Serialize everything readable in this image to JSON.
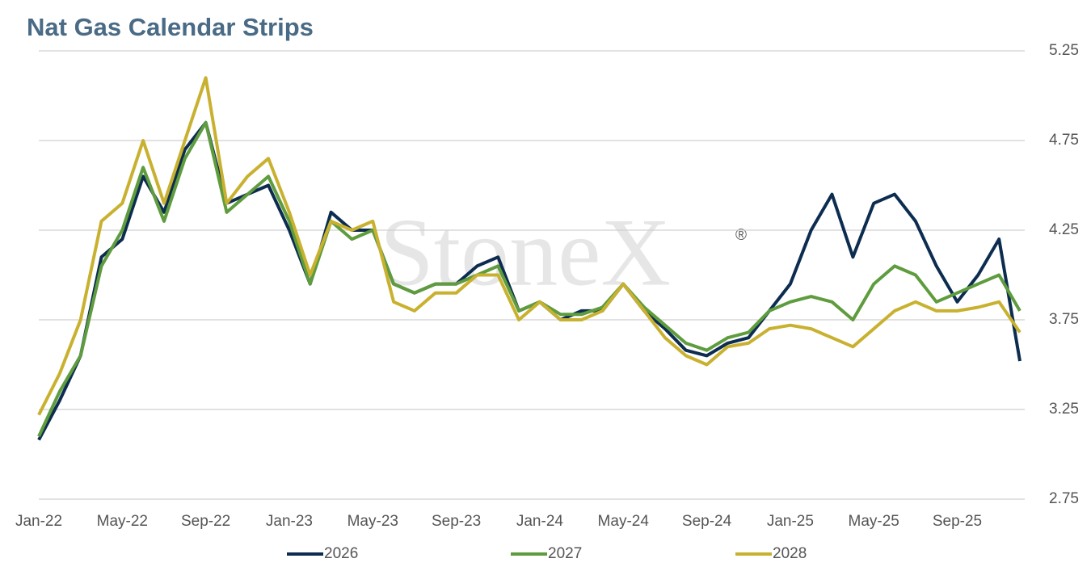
{
  "chart_data": {
    "type": "line",
    "title": "Nat Gas Calendar Strips",
    "watermark": "StoneX",
    "x": [
      "2022-01",
      "2022-02",
      "2022-03",
      "2022-04",
      "2022-05",
      "2022-06",
      "2022-07",
      "2022-08",
      "2022-09",
      "2022-10",
      "2022-11",
      "2022-12",
      "2023-01",
      "2023-02",
      "2023-03",
      "2023-04",
      "2023-05",
      "2023-06",
      "2023-07",
      "2023-08",
      "2023-09",
      "2023-10",
      "2023-11",
      "2023-12",
      "2024-01",
      "2024-02",
      "2024-03",
      "2024-04",
      "2024-05",
      "2024-06",
      "2024-07",
      "2024-08",
      "2024-09",
      "2024-10",
      "2024-11",
      "2024-12",
      "2025-01",
      "2025-02",
      "2025-03",
      "2025-04",
      "2025-05",
      "2025-06",
      "2025-07",
      "2025-08",
      "2025-09",
      "2025-10",
      "2025-11",
      "2025-12"
    ],
    "series": [
      {
        "name": "2026",
        "color": "#0d2d50",
        "values": [
          3.08,
          3.3,
          3.55,
          4.1,
          4.2,
          4.55,
          4.35,
          4.7,
          4.85,
          4.4,
          4.45,
          4.5,
          4.25,
          3.95,
          4.35,
          4.25,
          4.25,
          3.95,
          3.9,
          3.95,
          3.95,
          4.05,
          4.1,
          3.8,
          3.85,
          3.75,
          3.8,
          3.8,
          3.95,
          3.8,
          3.7,
          3.58,
          3.55,
          3.62,
          3.65,
          3.8,
          3.95,
          4.25,
          4.45,
          4.1,
          4.4,
          4.45,
          4.3,
          4.05,
          3.85,
          4.0,
          4.2,
          3.52
        ]
      },
      {
        "name": "2027",
        "color": "#5e9c3e",
        "values": [
          3.1,
          3.35,
          3.55,
          4.05,
          4.25,
          4.6,
          4.3,
          4.65,
          4.85,
          4.35,
          4.45,
          4.55,
          4.3,
          3.95,
          4.3,
          4.2,
          4.25,
          3.95,
          3.9,
          3.95,
          3.95,
          4.0,
          4.05,
          3.8,
          3.85,
          3.78,
          3.78,
          3.82,
          3.95,
          3.82,
          3.72,
          3.62,
          3.58,
          3.65,
          3.68,
          3.8,
          3.85,
          3.88,
          3.85,
          3.75,
          3.95,
          4.05,
          4.0,
          3.85,
          3.9,
          3.95,
          4.0,
          3.8
        ]
      },
      {
        "name": "2028",
        "color": "#c9b130",
        "values": [
          3.22,
          3.45,
          3.75,
          4.3,
          4.4,
          4.75,
          4.4,
          4.75,
          5.1,
          4.4,
          4.55,
          4.65,
          4.35,
          4.0,
          4.3,
          4.25,
          4.3,
          3.85,
          3.8,
          3.9,
          3.9,
          4.0,
          4.0,
          3.75,
          3.85,
          3.75,
          3.75,
          3.8,
          3.95,
          3.8,
          3.65,
          3.55,
          3.5,
          3.6,
          3.62,
          3.7,
          3.72,
          3.7,
          3.65,
          3.6,
          3.7,
          3.8,
          3.85,
          3.8,
          3.8,
          3.82,
          3.85,
          3.68
        ]
      }
    ],
    "xlim": [
      "2022-01",
      "2025-12"
    ],
    "xticks": [
      {
        "value": "2022-01",
        "label": "Jan-22"
      },
      {
        "value": "2022-05",
        "label": "May-22"
      },
      {
        "value": "2022-09",
        "label": "Sep-22"
      },
      {
        "value": "2023-01",
        "label": "Jan-23"
      },
      {
        "value": "2023-05",
        "label": "May-23"
      },
      {
        "value": "2023-09",
        "label": "Sep-23"
      },
      {
        "value": "2024-01",
        "label": "Jan-24"
      },
      {
        "value": "2024-05",
        "label": "May-24"
      },
      {
        "value": "2024-09",
        "label": "Sep-24"
      },
      {
        "value": "2025-01",
        "label": "Jan-25"
      },
      {
        "value": "2025-05",
        "label": "May-25"
      },
      {
        "value": "2025-09",
        "label": "Sep-25"
      }
    ],
    "ylim": [
      2.75,
      5.25
    ],
    "yticks": [
      2.75,
      3.25,
      3.75,
      4.25,
      4.75,
      5.25
    ],
    "grid": true,
    "legend": "bottom"
  }
}
